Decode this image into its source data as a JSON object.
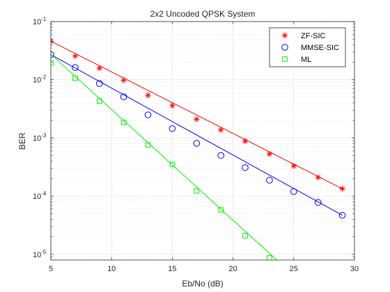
{
  "chart_data": {
    "type": "line",
    "title": "2x2 Uncoded QPSK System",
    "xlabel": "Eb/No (dB)",
    "ylabel": "BER",
    "xlim": [
      5,
      30
    ],
    "ylim": [
      8e-06,
      0.1
    ],
    "yscale": "log",
    "x_ticks": [
      5,
      10,
      15,
      20,
      25,
      30
    ],
    "y_ticks": [
      {
        "value": 1e-05,
        "base": "10",
        "exp": "-5"
      },
      {
        "value": 0.0001,
        "base": "10",
        "exp": "-4"
      },
      {
        "value": 0.001,
        "base": "10",
        "exp": "-3"
      },
      {
        "value": 0.01,
        "base": "10",
        "exp": "-2"
      },
      {
        "value": 0.1,
        "base": "10",
        "exp": "-1"
      }
    ],
    "grid": true,
    "minor_grid": true,
    "legend_position": "top-right",
    "series": [
      {
        "name": "ZF-SIC",
        "color": "#ff0000",
        "marker": "asterisk",
        "marker_x": [
          5,
          7,
          9,
          11,
          13,
          15,
          17,
          19,
          21,
          23,
          25,
          27,
          29
        ],
        "marker_y": [
          0.046,
          0.0255,
          0.0158,
          0.0098,
          0.0054,
          0.0036,
          0.0021,
          0.00138,
          0.00088,
          0.00053,
          0.00033,
          0.00021,
          0.000134
        ],
        "line_x": [
          5,
          29
        ],
        "line_y": [
          0.046,
          0.000134
        ]
      },
      {
        "name": "MMSE-SIC",
        "color": "#0000ff",
        "marker": "circle",
        "marker_x": [
          5,
          7,
          9,
          11,
          13,
          15,
          17,
          19,
          21,
          23,
          25,
          27,
          29
        ],
        "marker_y": [
          0.027,
          0.0162,
          0.0086,
          0.0051,
          0.0025,
          0.00145,
          0.00081,
          0.0005,
          0.00031,
          0.000188,
          0.00012,
          7.8e-05,
          4.7e-05
        ],
        "line_x": [
          5,
          29
        ],
        "line_y": [
          0.027,
          4.7e-05
        ]
      },
      {
        "name": "ML",
        "color": "#00ee00",
        "marker": "square",
        "marker_x": [
          5,
          7,
          9,
          11,
          13,
          15,
          17,
          19,
          21,
          23
        ],
        "marker_y": [
          0.0195,
          0.0107,
          0.0043,
          0.00185,
          0.00076,
          0.00035,
          0.000123,
          5.8e-05,
          2.1e-05,
          8.7e-06
        ],
        "line_x": [
          5,
          23.6
        ],
        "line_y": [
          0.0275,
          8e-06
        ]
      }
    ]
  }
}
